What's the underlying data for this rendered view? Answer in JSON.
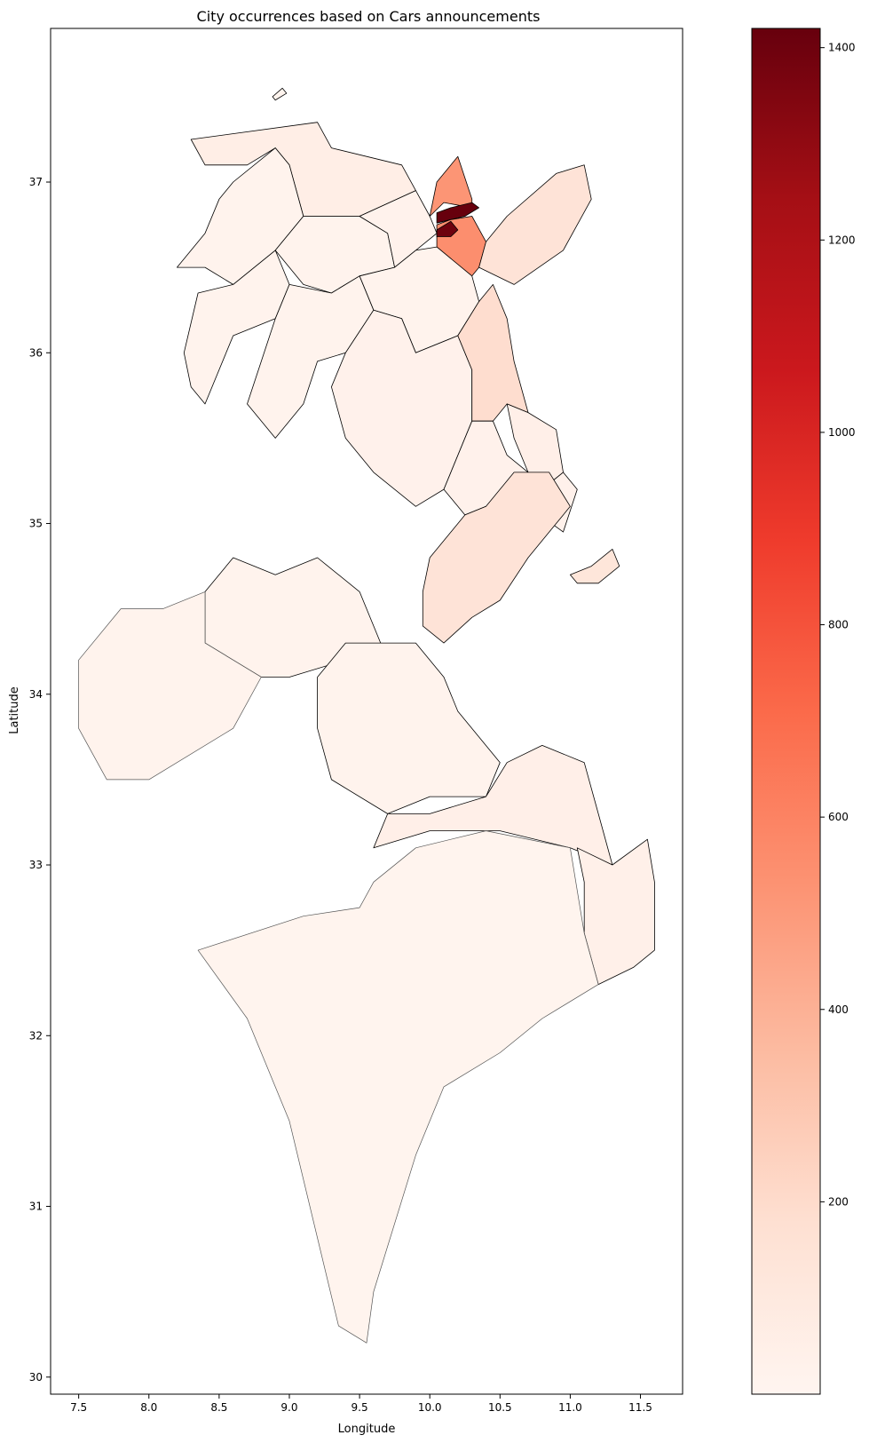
{
  "chart_data": {
    "type": "choropleth",
    "title": "City occurrences based on Cars announcements",
    "xlabel": "Longitude",
    "ylabel": "Latitude",
    "xlim": [
      7.3,
      11.8
    ],
    "ylim": [
      29.9,
      37.9
    ],
    "xticks": [
      7.5,
      8.0,
      8.5,
      9.0,
      9.5,
      10.0,
      10.5,
      11.0,
      11.5
    ],
    "xtick_labels": [
      "7.5",
      "8.0",
      "8.5",
      "9.0",
      "9.5",
      "10.0",
      "10.5",
      "11.0",
      "11.5"
    ],
    "yticks": [
      30,
      31,
      32,
      33,
      34,
      35,
      36,
      37
    ],
    "ytick_labels": [
      "30",
      "31",
      "32",
      "33",
      "34",
      "35",
      "36",
      "37"
    ],
    "colormap": "Reds",
    "colorbar": {
      "range": [
        0,
        1420
      ],
      "ticks": [
        200,
        400,
        600,
        800,
        1000,
        1200,
        1400
      ],
      "tick_labels": [
        "200",
        "400",
        "600",
        "800",
        "1000",
        "1200",
        "1400"
      ],
      "stops": [
        "#fff5f0",
        "#fee0d2",
        "#fcbba1",
        "#fc9272",
        "#fb6a4a",
        "#ef3b2c",
        "#cb181d",
        "#a50f15",
        "#67000d"
      ]
    },
    "regions": [
      {
        "value": 60,
        "poly": [
          [
            8.3,
            37.25
          ],
          [
            9.2,
            37.35
          ],
          [
            9.3,
            37.2
          ],
          [
            9.8,
            37.1
          ],
          [
            9.9,
            36.95
          ],
          [
            9.5,
            36.8
          ],
          [
            9.1,
            36.8
          ],
          [
            9.0,
            37.1
          ],
          [
            8.9,
            37.2
          ],
          [
            8.7,
            37.1
          ],
          [
            8.4,
            37.1
          ]
        ]
      },
      {
        "value": 20,
        "poly": [
          [
            8.6,
            37.0
          ],
          [
            8.9,
            37.2
          ],
          [
            9.0,
            37.1
          ],
          [
            9.1,
            36.8
          ],
          [
            8.9,
            36.6
          ],
          [
            8.6,
            36.4
          ],
          [
            8.4,
            36.5
          ],
          [
            8.2,
            36.5
          ],
          [
            8.4,
            36.7
          ],
          [
            8.5,
            36.9
          ]
        ]
      },
      {
        "value": 20,
        "poly": [
          [
            8.9,
            36.6
          ],
          [
            9.1,
            36.8
          ],
          [
            9.5,
            36.8
          ],
          [
            9.7,
            36.7
          ],
          [
            9.75,
            36.5
          ],
          [
            9.5,
            36.45
          ],
          [
            9.3,
            36.35
          ],
          [
            9.1,
            36.4
          ]
        ]
      },
      {
        "value": 25,
        "poly": [
          [
            9.5,
            36.8
          ],
          [
            9.9,
            36.95
          ],
          [
            10.0,
            36.8
          ],
          [
            10.05,
            36.7
          ],
          [
            9.9,
            36.6
          ],
          [
            9.75,
            36.5
          ],
          [
            9.7,
            36.7
          ]
        ]
      },
      {
        "value": 520,
        "poly": [
          [
            10.0,
            36.8
          ],
          [
            10.05,
            37.0
          ],
          [
            10.2,
            37.15
          ],
          [
            10.3,
            36.9
          ],
          [
            10.3,
            36.85
          ],
          [
            10.1,
            36.88
          ]
        ]
      },
      {
        "value": 1420,
        "poly": [
          [
            10.05,
            36.82
          ],
          [
            10.15,
            36.85
          ],
          [
            10.3,
            36.88
          ],
          [
            10.35,
            36.85
          ],
          [
            10.25,
            36.8
          ],
          [
            10.15,
            36.78
          ],
          [
            10.05,
            36.76
          ]
        ]
      },
      {
        "value": 550,
        "poly": [
          [
            10.05,
            36.75
          ],
          [
            10.15,
            36.78
          ],
          [
            10.3,
            36.8
          ],
          [
            10.4,
            36.65
          ],
          [
            10.35,
            36.5
          ],
          [
            10.3,
            36.45
          ],
          [
            10.15,
            36.55
          ],
          [
            10.05,
            36.62
          ]
        ]
      },
      {
        "value": 1400,
        "poly": [
          [
            10.05,
            36.72
          ],
          [
            10.15,
            36.77
          ],
          [
            10.2,
            36.72
          ],
          [
            10.15,
            36.68
          ],
          [
            10.05,
            36.68
          ]
        ]
      },
      {
        "value": 150,
        "poly": [
          [
            10.4,
            36.65
          ],
          [
            10.55,
            36.8
          ],
          [
            10.9,
            37.05
          ],
          [
            11.1,
            37.1
          ],
          [
            11.15,
            36.9
          ],
          [
            10.95,
            36.6
          ],
          [
            10.6,
            36.4
          ],
          [
            10.35,
            36.5
          ]
        ]
      },
      {
        "value": 15,
        "poly": [
          [
            8.35,
            36.35
          ],
          [
            8.6,
            36.4
          ],
          [
            8.9,
            36.6
          ],
          [
            9.0,
            36.4
          ],
          [
            8.9,
            36.2
          ],
          [
            8.6,
            36.1
          ],
          [
            8.4,
            35.7
          ],
          [
            8.3,
            35.8
          ],
          [
            8.25,
            36.0
          ]
        ]
      },
      {
        "value": 15,
        "poly": [
          [
            9.0,
            36.4
          ],
          [
            9.3,
            36.35
          ],
          [
            9.5,
            36.45
          ],
          [
            9.6,
            36.25
          ],
          [
            9.4,
            36.0
          ],
          [
            9.2,
            35.95
          ],
          [
            9.1,
            35.7
          ],
          [
            8.9,
            35.5
          ],
          [
            8.7,
            35.7
          ],
          [
            8.9,
            36.2
          ]
        ]
      },
      {
        "value": 20,
        "poly": [
          [
            9.5,
            36.45
          ],
          [
            9.75,
            36.5
          ],
          [
            9.9,
            36.6
          ],
          [
            10.05,
            36.62
          ],
          [
            10.3,
            36.45
          ],
          [
            10.35,
            36.3
          ],
          [
            10.2,
            36.1
          ],
          [
            9.9,
            36.0
          ],
          [
            9.8,
            36.2
          ],
          [
            9.6,
            36.25
          ]
        ]
      },
      {
        "value": 30,
        "poly": [
          [
            9.4,
            36.0
          ],
          [
            9.6,
            36.25
          ],
          [
            9.8,
            36.2
          ],
          [
            9.9,
            36.0
          ],
          [
            10.2,
            36.1
          ],
          [
            10.3,
            35.9
          ],
          [
            10.3,
            35.6
          ],
          [
            10.1,
            35.2
          ],
          [
            9.9,
            35.1
          ],
          [
            9.6,
            35.3
          ],
          [
            9.4,
            35.5
          ],
          [
            9.3,
            35.8
          ]
        ]
      },
      {
        "value": 190,
        "poly": [
          [
            10.35,
            36.3
          ],
          [
            10.45,
            36.4
          ],
          [
            10.55,
            36.2
          ],
          [
            10.6,
            35.95
          ],
          [
            10.7,
            35.65
          ],
          [
            10.55,
            35.7
          ],
          [
            10.45,
            35.6
          ],
          [
            10.3,
            35.6
          ],
          [
            10.3,
            35.9
          ],
          [
            10.2,
            36.1
          ]
        ]
      },
      {
        "value": 50,
        "poly": [
          [
            10.55,
            35.7
          ],
          [
            10.7,
            35.65
          ],
          [
            10.9,
            35.55
          ],
          [
            10.95,
            35.3
          ],
          [
            10.8,
            35.2
          ],
          [
            10.7,
            35.3
          ],
          [
            10.6,
            35.5
          ]
        ]
      },
      {
        "value": 30,
        "poly": [
          [
            10.1,
            35.2
          ],
          [
            10.3,
            35.6
          ],
          [
            10.45,
            35.6
          ],
          [
            10.55,
            35.4
          ],
          [
            10.7,
            35.3
          ],
          [
            10.8,
            35.2
          ],
          [
            10.95,
            35.3
          ],
          [
            11.05,
            35.2
          ],
          [
            10.95,
            34.95
          ],
          [
            10.7,
            35.1
          ],
          [
            10.4,
            35.1
          ],
          [
            10.25,
            35.05
          ]
        ]
      },
      {
        "value": 150,
        "poly": [
          [
            9.95,
            34.4
          ],
          [
            10.1,
            34.3
          ],
          [
            10.3,
            34.45
          ],
          [
            10.5,
            34.55
          ],
          [
            10.7,
            34.8
          ],
          [
            10.9,
            35.0
          ],
          [
            11.0,
            35.1
          ],
          [
            10.85,
            35.3
          ],
          [
            10.6,
            35.3
          ],
          [
            10.4,
            35.1
          ],
          [
            10.25,
            35.05
          ],
          [
            10.0,
            34.8
          ],
          [
            9.95,
            34.6
          ]
        ]
      },
      {
        "value": 130,
        "poly": [
          [
            11.0,
            34.7
          ],
          [
            11.15,
            34.75
          ],
          [
            11.3,
            34.85
          ],
          [
            11.35,
            34.75
          ],
          [
            11.2,
            34.65
          ],
          [
            11.05,
            34.65
          ]
        ]
      },
      {
        "value": 15,
        "poly": [
          [
            8.4,
            34.6
          ],
          [
            8.6,
            34.8
          ],
          [
            8.9,
            34.7
          ],
          [
            9.2,
            34.8
          ],
          [
            9.5,
            34.6
          ],
          [
            9.65,
            34.3
          ],
          [
            9.4,
            34.2
          ],
          [
            9.0,
            34.1
          ],
          [
            8.8,
            34.1
          ],
          [
            8.6,
            34.2
          ],
          [
            8.4,
            34.3
          ]
        ]
      },
      {
        "value": 15,
        "poly": [
          [
            7.5,
            34.2
          ],
          [
            7.8,
            34.5
          ],
          [
            8.1,
            34.5
          ],
          [
            8.4,
            34.6
          ],
          [
            8.4,
            34.3
          ],
          [
            8.6,
            34.2
          ],
          [
            8.8,
            34.1
          ],
          [
            8.6,
            33.8
          ],
          [
            8.0,
            33.5
          ],
          [
            7.7,
            33.5
          ],
          [
            7.5,
            33.8
          ]
        ]
      },
      {
        "value": 20,
        "poly": [
          [
            9.2,
            34.1
          ],
          [
            9.4,
            34.3
          ],
          [
            9.65,
            34.3
          ],
          [
            9.9,
            34.3
          ],
          [
            10.1,
            34.1
          ],
          [
            10.2,
            33.9
          ],
          [
            10.5,
            33.6
          ],
          [
            10.4,
            33.4
          ],
          [
            10.0,
            33.4
          ],
          [
            9.7,
            33.3
          ],
          [
            9.3,
            33.5
          ],
          [
            9.2,
            33.8
          ]
        ]
      },
      {
        "value": 50,
        "poly": [
          [
            9.7,
            33.3
          ],
          [
            10.0,
            33.3
          ],
          [
            10.4,
            33.4
          ],
          [
            10.55,
            33.6
          ],
          [
            10.8,
            33.7
          ],
          [
            11.1,
            33.6
          ],
          [
            11.2,
            33.3
          ],
          [
            11.3,
            33.0
          ],
          [
            11.0,
            33.1
          ],
          [
            10.5,
            33.2
          ],
          [
            10.0,
            33.2
          ],
          [
            9.6,
            33.1
          ]
        ]
      },
      {
        "value": 40,
        "poly": [
          [
            11.05,
            33.1
          ],
          [
            11.3,
            33.0
          ],
          [
            11.55,
            33.15
          ],
          [
            11.6,
            32.9
          ],
          [
            11.6,
            32.5
          ],
          [
            11.45,
            32.4
          ],
          [
            11.2,
            32.3
          ],
          [
            11.1,
            32.6
          ],
          [
            11.1,
            32.9
          ]
        ]
      },
      {
        "value": 10,
        "poly": [
          [
            8.35,
            32.5
          ],
          [
            9.1,
            32.7
          ],
          [
            9.5,
            32.75
          ],
          [
            9.6,
            32.9
          ],
          [
            9.9,
            33.1
          ],
          [
            10.4,
            33.2
          ],
          [
            11.0,
            33.1
          ],
          [
            11.1,
            32.6
          ],
          [
            11.2,
            32.3
          ],
          [
            10.8,
            32.1
          ],
          [
            10.5,
            31.9
          ],
          [
            10.1,
            31.7
          ],
          [
            9.9,
            31.3
          ],
          [
            9.6,
            30.5
          ],
          [
            9.55,
            30.2
          ],
          [
            9.35,
            30.3
          ],
          [
            9.0,
            31.5
          ],
          [
            8.7,
            32.1
          ],
          [
            8.35,
            32.5
          ]
        ]
      }
    ]
  }
}
